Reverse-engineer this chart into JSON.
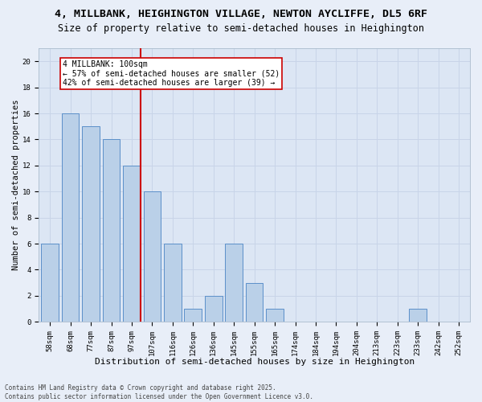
{
  "title1": "4, MILLBANK, HEIGHINGTON VILLAGE, NEWTON AYCLIFFE, DL5 6RF",
  "title2": "Size of property relative to semi-detached houses in Heighington",
  "xlabel": "Distribution of semi-detached houses by size in Heighington",
  "ylabel": "Number of semi-detached properties",
  "categories": [
    "58sqm",
    "68sqm",
    "77sqm",
    "87sqm",
    "97sqm",
    "107sqm",
    "116sqm",
    "126sqm",
    "136sqm",
    "145sqm",
    "155sqm",
    "165sqm",
    "174sqm",
    "184sqm",
    "194sqm",
    "204sqm",
    "213sqm",
    "223sqm",
    "233sqm",
    "242sqm",
    "252sqm"
  ],
  "values": [
    6,
    16,
    15,
    14,
    12,
    10,
    6,
    1,
    2,
    6,
    3,
    1,
    0,
    0,
    0,
    0,
    0,
    0,
    1,
    0,
    0
  ],
  "bar_color": "#bad0e8",
  "bar_edge_color": "#5b8fc9",
  "vline_x": 4.42,
  "vline_color": "#cc0000",
  "annotation_text": "4 MILLBANK: 100sqm\n← 57% of semi-detached houses are smaller (52)\n42% of semi-detached houses are larger (39) →",
  "annotation_box_facecolor": "#ffffff",
  "annotation_box_edge": "#cc0000",
  "ylim": [
    0,
    21
  ],
  "yticks": [
    0,
    2,
    4,
    6,
    8,
    10,
    12,
    14,
    16,
    18,
    20
  ],
  "grid_color": "#c8d4e8",
  "background_color": "#dce6f4",
  "fig_background": "#e8eef8",
  "footer_text": "Contains HM Land Registry data © Crown copyright and database right 2025.\nContains public sector information licensed under the Open Government Licence v3.0.",
  "title1_fontsize": 9.5,
  "title2_fontsize": 8.5,
  "tick_fontsize": 6.5,
  "xlabel_fontsize": 8,
  "ylabel_fontsize": 7.5,
  "annotation_fontsize": 7,
  "footer_fontsize": 5.5
}
